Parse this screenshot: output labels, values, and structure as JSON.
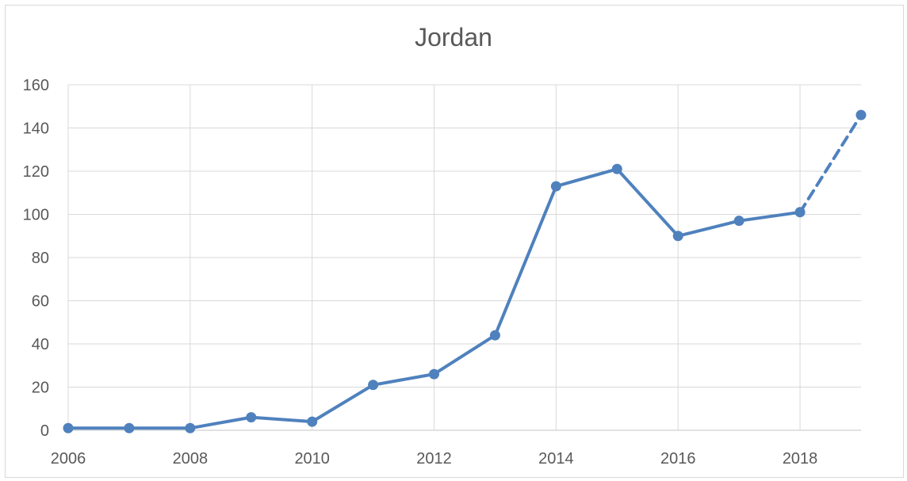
{
  "chart_data": {
    "type": "line",
    "title": "Jordan",
    "xlabel": "",
    "ylabel": "",
    "xlim": [
      2006,
      2019
    ],
    "ylim": [
      0,
      160
    ],
    "x_ticks": [
      2006,
      2008,
      2010,
      2012,
      2014,
      2016,
      2018
    ],
    "y_ticks": [
      0,
      20,
      40,
      60,
      80,
      100,
      120,
      140,
      160
    ],
    "grid": true,
    "legend": "none",
    "series": [
      {
        "color": "#4f81bd",
        "x": [
          2006,
          2007,
          2008,
          2009,
          2010,
          2011,
          2012,
          2013,
          2014,
          2015,
          2016,
          2017,
          2018,
          2019
        ],
        "values": [
          1,
          1,
          1,
          6,
          4,
          21,
          26,
          44,
          113,
          121,
          90,
          97,
          101,
          146
        ],
        "dashed_from_x": 2018
      }
    ]
  }
}
